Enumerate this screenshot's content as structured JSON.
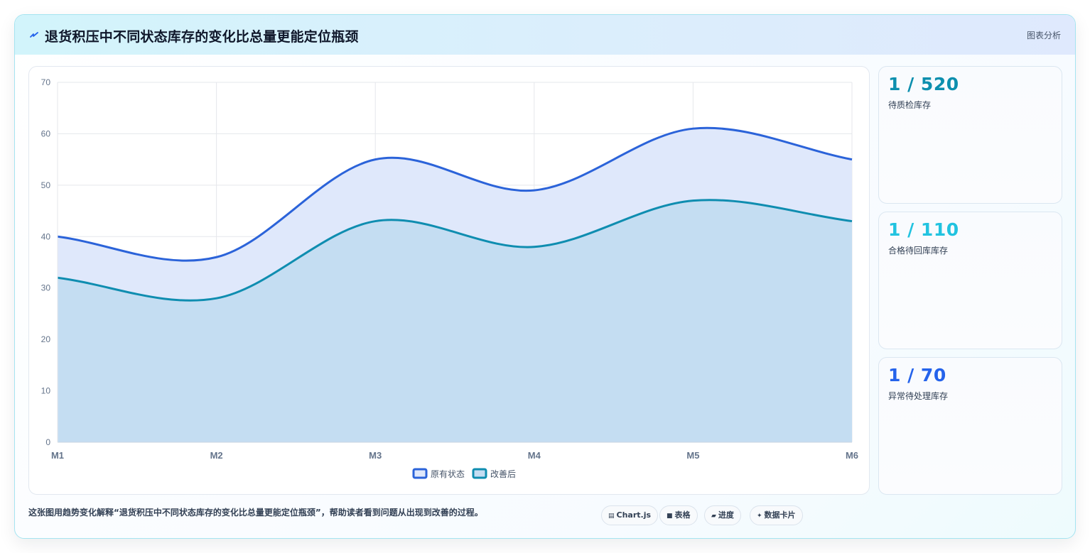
{
  "header": {
    "icon": "bolt-icon",
    "title": "退货积压中不同状态库存的变化比总量更能定位瓶颈",
    "tag": "图表分析"
  },
  "chart_data": {
    "type": "area",
    "x": [
      "M1",
      "M2",
      "M3",
      "M4",
      "M5",
      "M6"
    ],
    "ylim": [
      0,
      70
    ],
    "yticks": [
      "0",
      "10",
      "20",
      "30",
      "40",
      "50",
      "60",
      "70"
    ],
    "grid": true,
    "legend_position": "bottom",
    "series": [
      {
        "name": "原有状态",
        "values": [
          40,
          36,
          55,
          49,
          61,
          55
        ],
        "color": "#2b63d9",
        "fill": "#dfe8fb"
      },
      {
        "name": "改善后",
        "values": [
          32,
          28,
          43,
          38,
          47,
          43
        ],
        "color": "#0f8db0",
        "fill": "#c4ddf2"
      }
    ]
  },
  "stats": [
    {
      "value": "1 / 520",
      "label": "待质检库存",
      "color": "#0d8fae"
    },
    {
      "value": "1 / 110",
      "label": "合格待回库库存",
      "color": "#22c3e0"
    },
    {
      "value": "1 / 70",
      "label": "异常待处理库存",
      "color": "#2563eb"
    }
  ],
  "footer": {
    "description": "这张图用趋势变化解释“退货积压中不同状态库存的变化比总量更能定位瓶颈”，帮助读者看到问题从出现到改善的过程。",
    "chips": [
      {
        "icon": "▤",
        "label": "Chart.js"
      },
      {
        "icon": "■",
        "label": "表格"
      },
      {
        "icon": "▰",
        "label": "进度"
      },
      {
        "icon": "✦",
        "label": "数据卡片"
      }
    ]
  }
}
